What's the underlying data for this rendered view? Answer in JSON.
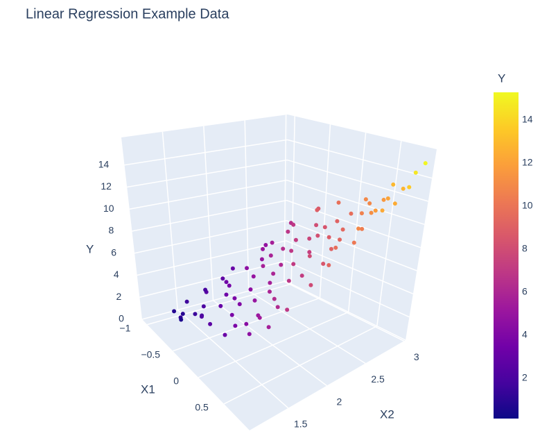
{
  "chart_data": {
    "type": "scatter3d",
    "title": "Linear Regression Example Data",
    "x1_title": "X1",
    "x2_title": "X2",
    "y_title": "Y",
    "x1lim": [
      -1.1,
      1.0
    ],
    "x2lim": [
      1.0,
      3.02
    ],
    "ylim": [
      0,
      16.5
    ],
    "x1ticks": [
      {
        "value": -1,
        "label": "−1"
      },
      {
        "value": -0.5,
        "label": "−0.5"
      },
      0,
      0.5
    ],
    "x2ticks": [
      1.5,
      2,
      2.5,
      3
    ],
    "yticks": [
      0,
      2,
      4,
      6,
      8,
      10,
      12,
      14
    ],
    "grid": true,
    "colorscale": [
      "#0d0887",
      "#46039f",
      "#7201a8",
      "#9c179e",
      "#bd3786",
      "#d8576b",
      "#ed7953",
      "#fb9f3a",
      "#fdca26",
      "#f0f921"
    ],
    "clim": [
      0.13,
      15.29
    ],
    "colorbar_title": "Y",
    "colorbar_ticks": [
      2,
      4,
      6,
      8,
      10,
      12,
      14
    ],
    "x1": [
      -0.95,
      -0.9,
      -0.85,
      -0.8,
      -0.75,
      -0.7,
      -0.65,
      -0.6,
      -0.55,
      -0.5,
      -0.45,
      -0.4,
      -0.35,
      -0.3,
      -0.25,
      -0.2,
      -0.15,
      -0.1,
      -0.05,
      0.0,
      0.05,
      0.1,
      0.15,
      0.2,
      0.25,
      0.3,
      0.35,
      0.4,
      0.45,
      0.5,
      0.55,
      0.6,
      0.65,
      0.7,
      0.75,
      0.8,
      0.85,
      0.9,
      0.88,
      -0.98,
      -0.92,
      -0.88,
      -0.78,
      -0.72,
      -0.62,
      -0.52,
      -0.42,
      -0.32,
      -0.22,
      -0.12,
      -0.02,
      0.08,
      0.18,
      0.28,
      0.38,
      0.48,
      0.58,
      0.68,
      0.78,
      0.82,
      -0.96,
      -0.82,
      -0.68,
      -0.58,
      -0.48,
      -0.38,
      -0.28,
      -0.18,
      -0.08,
      0.02,
      0.12,
      0.22,
      0.32,
      0.42,
      0.52,
      0.62,
      0.72,
      0.86,
      -0.9,
      -0.6,
      0.1,
      0.45,
      0.65,
      0.55,
      -0.3,
      0.3,
      0.7,
      -0.75,
      -0.15,
      0.9
    ],
    "x2": [
      1.35,
      1.5,
      1.4,
      1.7,
      1.3,
      1.9,
      1.55,
      2.1,
      1.45,
      1.75,
      2.3,
      1.6,
      2.0,
      2.5,
      1.35,
      1.85,
      2.2,
      2.7,
      1.5,
      1.95,
      2.4,
      2.85,
      1.4,
      1.8,
      2.25,
      2.6,
      1.55,
      2.05,
      2.45,
      2.9,
      1.65,
      2.15,
      2.55,
      2.95,
      1.9,
      2.35,
      2.75,
      3.0,
      2.92,
      2.2,
      2.6,
      2.9,
      2.45,
      2.8,
      2.65,
      2.95,
      2.85,
      2.1,
      2.95,
      1.65,
      2.55,
      1.7,
      2.95,
      1.45,
      2.75,
      1.35,
      2.7,
      1.45,
      1.6,
      2.05,
      1.8,
      1.35,
      1.45,
      1.85,
      1.4,
      2.4,
      1.7,
      2.35,
      2.05,
      2.75,
      2.15,
      2.5,
      1.95,
      1.7,
      2.3,
      2.85,
      2.45,
      2.6,
      2.0,
      2.3,
      1.3,
      1.5,
      2.25,
      2.95,
      2.75,
      2.9,
      2.65,
      2.55,
      2.55,
      2.85
    ],
    "values": [
      0.8,
      1.6,
      0.9,
      2.5,
      1.2,
      3.4,
      2.1,
      4.6,
      1.9,
      3.3,
      5.8,
      3.0,
      4.9,
      7.2,
      2.6,
      4.6,
      6.1,
      8.4,
      3.8,
      5.6,
      7.3,
      9.7,
      3.9,
      5.9,
      7.9,
      9.4,
      5.1,
      7.2,
      9.3,
      11.6,
      6.2,
      8.5,
      10.4,
      12.8,
      7.9,
      10.2,
      12.4,
      15.2,
      14.6,
      3.1,
      4.8,
      6.5,
      5.1,
      6.9,
      6.8,
      8.6,
      8.9,
      5.7,
      9.8,
      4.1,
      8.2,
      5.0,
      10.9,
      4.4,
      10.6,
      4.6,
      11.2,
      5.6,
      6.9,
      9.3,
      1.9,
      0.6,
      1.5,
      3.6,
      2.2,
      6.4,
      3.9,
      6.9,
      5.9,
      9.1,
      7.1,
      8.8,
      6.8,
      6.3,
      9.1,
      12.1,
      10.9,
      12.3,
      2.8,
      5.0,
      3.2,
      5.4,
      9.7,
      12.9,
      8.0,
      10.9,
      11.8,
      5.6,
      7.6,
      13.6
    ]
  }
}
